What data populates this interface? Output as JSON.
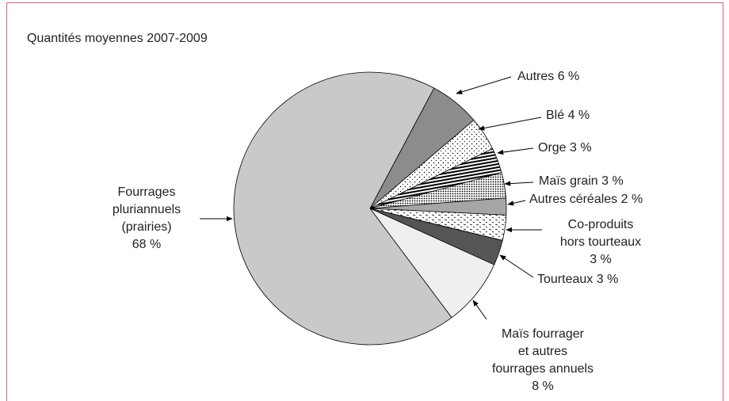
{
  "chart_data": {
    "type": "pie",
    "title": "Quantités moyennes 2007-2009",
    "categories": [
      "Autres",
      "Blé",
      "Orge",
      "Maïs grain",
      "Autres céréales",
      "Co-produits\nhors tourteaux",
      "Tourteaux",
      "Maïs fourrager\net autres\nfourrages annuels",
      "Fourrages\npluriannuels\n(prairies)"
    ],
    "values": [
      6,
      4,
      3,
      3,
      2,
      3,
      3,
      8,
      68
    ],
    "value_labels": [
      "6 %",
      "4 %",
      "3 %",
      "3 %",
      "2 %",
      "3 %",
      "3 %",
      "8 %",
      "68 %"
    ],
    "colors": [
      "#8c8c8c",
      "#ffffff",
      "#ffffff",
      "#ffffff",
      "#a6a6a6",
      "#ffffff",
      "#555555",
      "#efefef",
      "#c9c9c9"
    ],
    "patterns": [
      null,
      "dots-sparse",
      "stripes",
      "dots-dense",
      null,
      "dashes",
      null,
      null,
      null
    ]
  }
}
